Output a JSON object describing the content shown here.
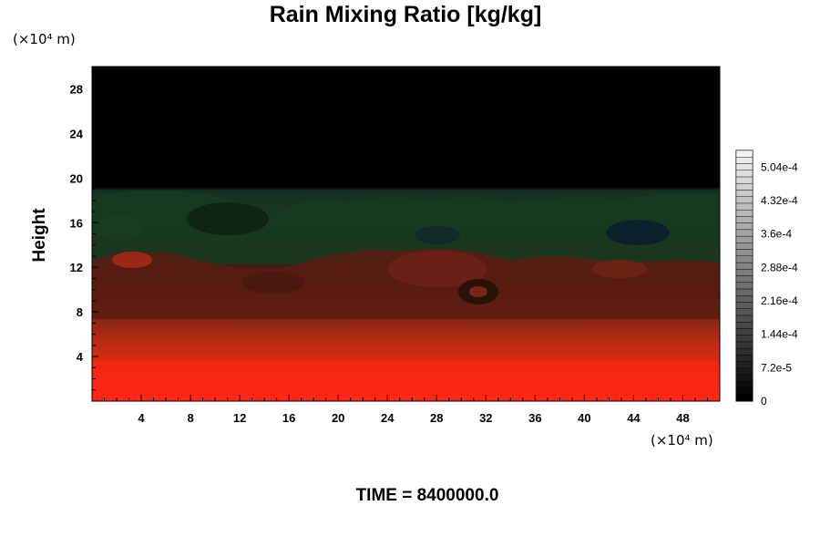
{
  "chart_data": {
    "type": "heatmap",
    "title": "Rain Mixing Ratio [kg/kg]",
    "ylabel": "Height",
    "x_unit": "(×10⁴ m)",
    "y_unit": "(×10⁴ m)",
    "x_ticks": [
      4,
      8,
      12,
      16,
      20,
      24,
      28,
      32,
      36,
      40,
      44,
      48
    ],
    "y_ticks": [
      4,
      8,
      12,
      16,
      20,
      24,
      28
    ],
    "xlim": [
      0,
      51
    ],
    "ylim": [
      0,
      30
    ],
    "colorbar": {
      "labels": [
        "0",
        "7.2e-5",
        "1.44e-4",
        "2.16e-4",
        "2.88e-4",
        "3.6e-4",
        "4.32e-4",
        "5.04e-4"
      ],
      "values": [
        0,
        7.2e-05,
        0.000144,
        0.000216,
        0.000288,
        0.00036,
        0.000432,
        0.000504
      ],
      "range": [
        0,
        0.00054
      ],
      "colormap": "grayscale"
    },
    "field_summary": {
      "background_color": "#000000",
      "rain_layer_top_height": 18.5,
      "color_near_surface": "#ff2010",
      "color_mid_levels": "#5a1e14",
      "color_upper_layer": "#15331a",
      "description_note": ""
    },
    "time_label": "TIME = 8400000.0"
  }
}
